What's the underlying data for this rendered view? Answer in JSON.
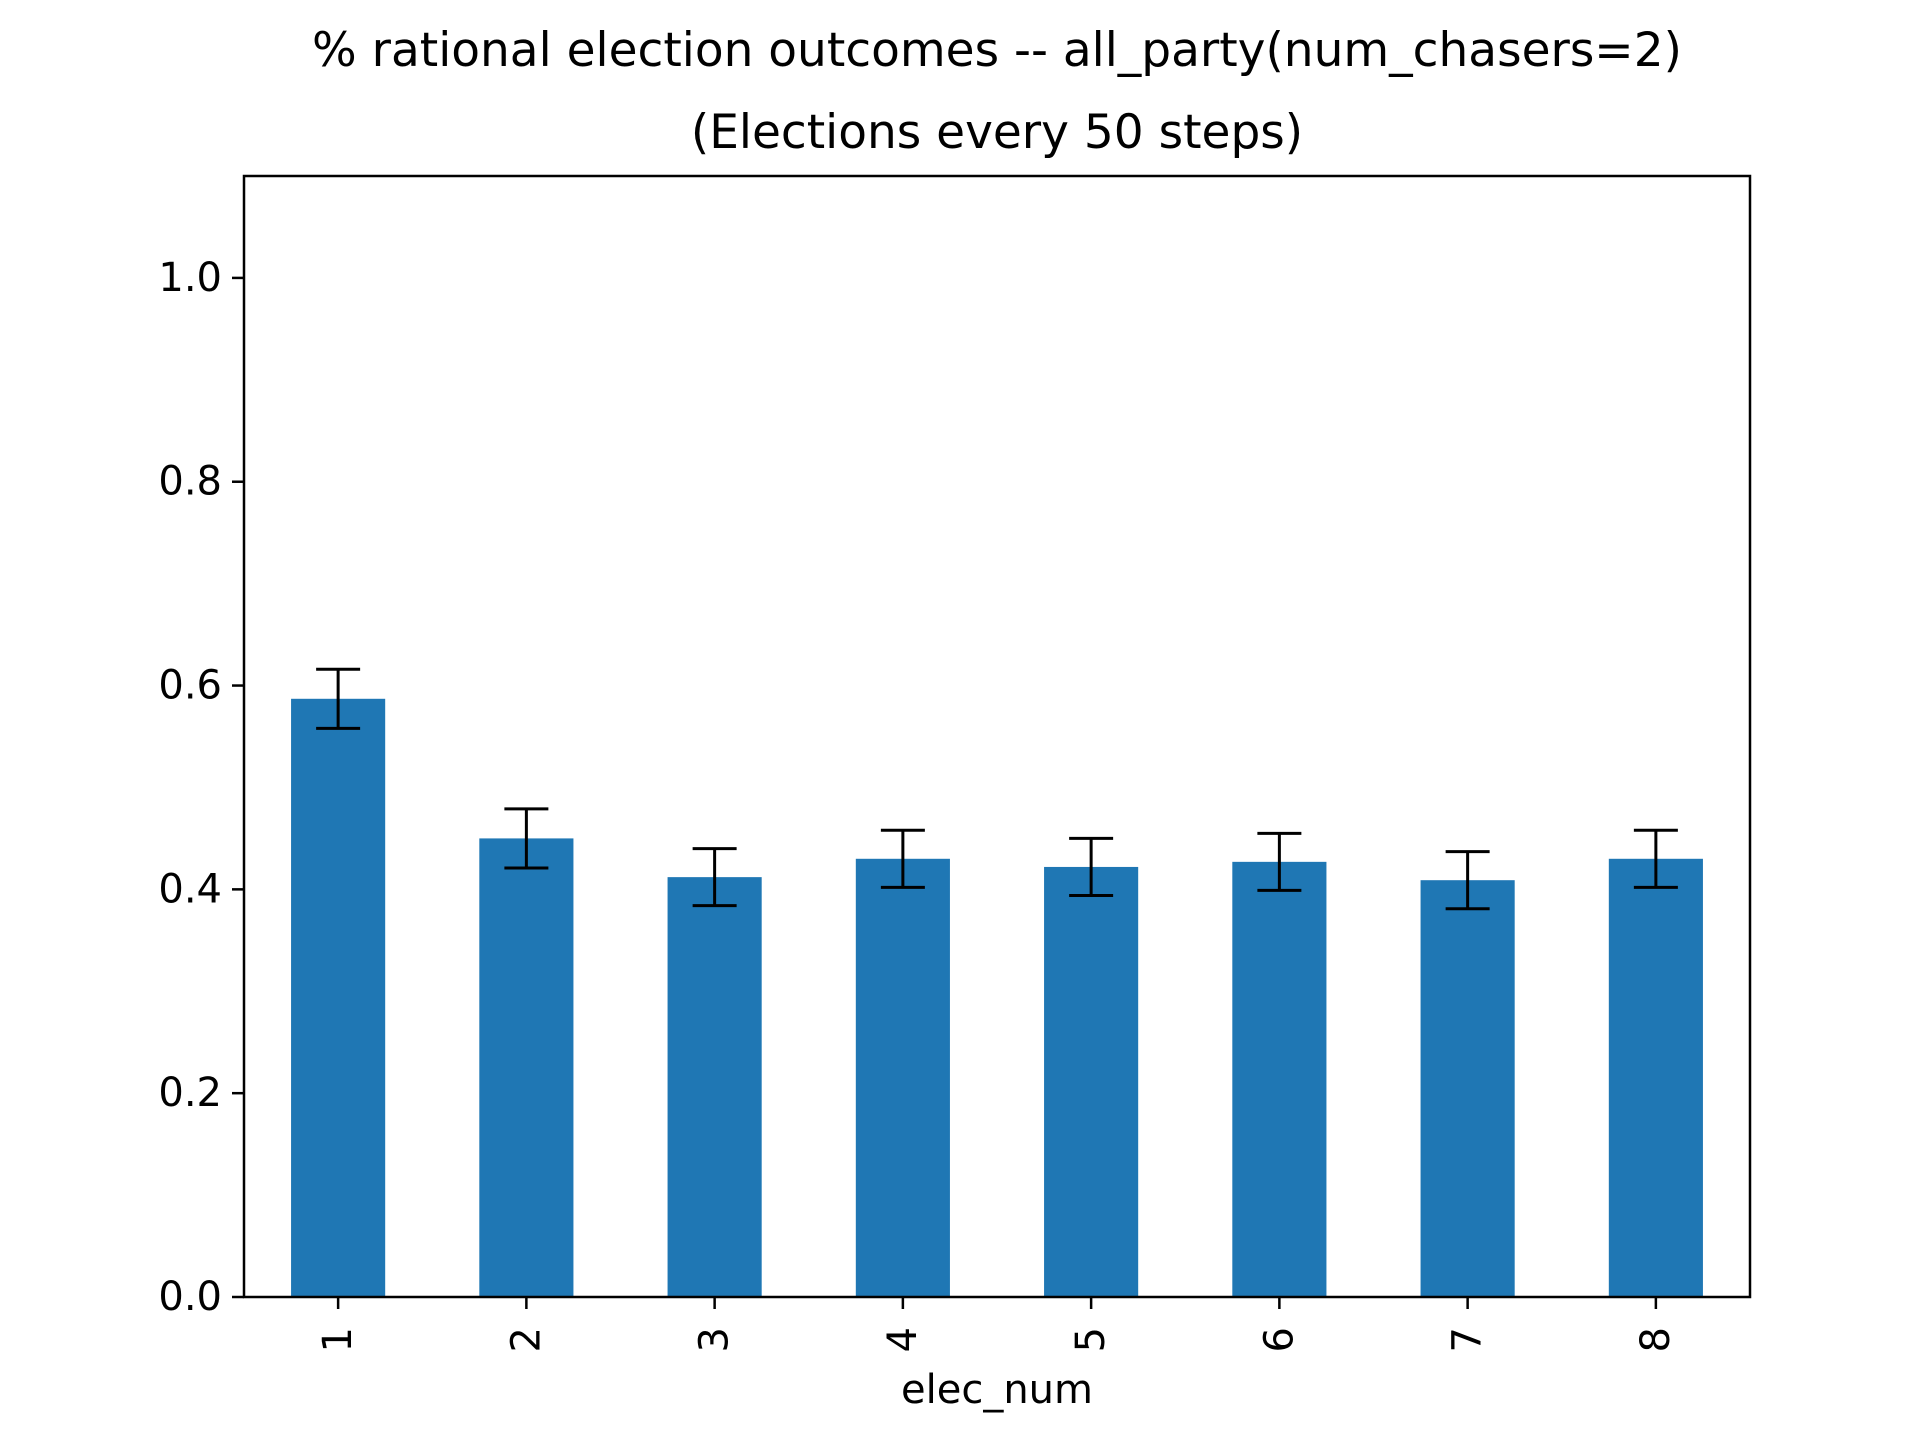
{
  "chart_data": {
    "type": "bar",
    "title": "% rational election outcomes -- all_party(num_chasers=2)",
    "subtitle": "(Elections every 50 steps)",
    "xlabel": "elec_num",
    "ylabel": "",
    "categories": [
      "1",
      "2",
      "3",
      "4",
      "5",
      "6",
      "7",
      "8"
    ],
    "values": [
      0.587,
      0.45,
      0.412,
      0.43,
      0.422,
      0.427,
      0.409,
      0.43
    ],
    "error": [
      0.029,
      0.029,
      0.028,
      0.028,
      0.028,
      0.028,
      0.028,
      0.028
    ],
    "ylim": [
      0,
      1.1
    ],
    "yticks": [
      "0.0",
      "0.2",
      "0.4",
      "0.6",
      "0.8",
      "1.0"
    ],
    "xtick_rotation": "vertical",
    "grid": false,
    "legend": "none",
    "colors": {
      "bar": "#1f77b4",
      "errorbar": "#000000",
      "axes": "#000000"
    }
  }
}
